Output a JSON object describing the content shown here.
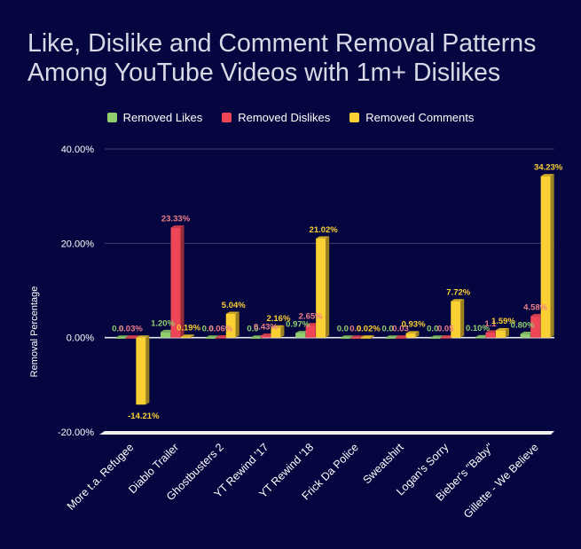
{
  "colors": {
    "background": "#05053f",
    "title": "#d9d9e6",
    "grid": "#3d3d6e",
    "zero_line": "#e6e6ee",
    "removed_likes": "#8fcf6f",
    "removed_dislikes": "#ee4656",
    "removed_comments": "#fbd033",
    "likes_label": "#8fcf6f",
    "dislikes_label": "#f07f8c",
    "comments_label": "#fbd033"
  },
  "chart_data": {
    "type": "bar",
    "title": "Like, Dislike and Comment Removal Patterns Among YouTube Videos with 1m+ Dislikes",
    "title_lines": [
      "Like, Dislike and Comment Removal Patterns",
      "Among YouTube Videos with 1m+ Dislikes"
    ],
    "xlabel": "",
    "ylabel": "Removal Percentage",
    "ylim": [
      -20,
      40
    ],
    "yticks": [
      40,
      20,
      0,
      -20
    ],
    "ytick_labels": [
      "40.00%",
      "20.00%",
      "0.00%",
      "-20.00%"
    ],
    "grid": true,
    "legend_position": "top",
    "style": "3d",
    "categories": [
      "More t.a. Refugee",
      "Diablo Trailer",
      "Ghostbusters 2",
      "YT Rewind '17",
      "YT Rewind '18",
      "Frick Da Police",
      "Sweatshirt",
      "Logan's Sorry",
      "Bieber's \"Baby\"",
      "Gillette - We Believe"
    ],
    "series": [
      {
        "name": "Removed Likes",
        "color": "#8fcf6f",
        "values": [
          0.0,
          1.2,
          0.0,
          0.0,
          0.97,
          0.0,
          0.0,
          0.0,
          0.1,
          0.8
        ],
        "labels": [
          "0.0",
          "1.20%",
          "0.0",
          "0.0",
          "0.97%",
          "0.0",
          "0.0",
          "0.0",
          "0.10%",
          "0.80%"
        ]
      },
      {
        "name": "Removed Dislikes",
        "color": "#ee4656",
        "values": [
          0.03,
          23.33,
          0.06,
          0.43,
          2.65,
          0.0,
          0.03,
          0.05,
          1.1,
          4.58
        ],
        "labels": [
          "0.03%",
          "23.33%",
          "0.06%",
          "0.43%",
          "2.65%",
          "0.0",
          "0.03",
          "0.05",
          "1.1",
          "4.58%"
        ]
      },
      {
        "name": "Removed Comments",
        "color": "#fbd033",
        "values": [
          -14.21,
          0.19,
          5.04,
          2.16,
          21.02,
          0.02,
          0.93,
          7.72,
          1.59,
          34.23
        ],
        "labels": [
          "-14.21%",
          "0.19%",
          "5.04%",
          "2.16%",
          "21.02%",
          "0.02%",
          "0.93%",
          "7.72%",
          "1.59%",
          "34.23%"
        ]
      }
    ]
  }
}
